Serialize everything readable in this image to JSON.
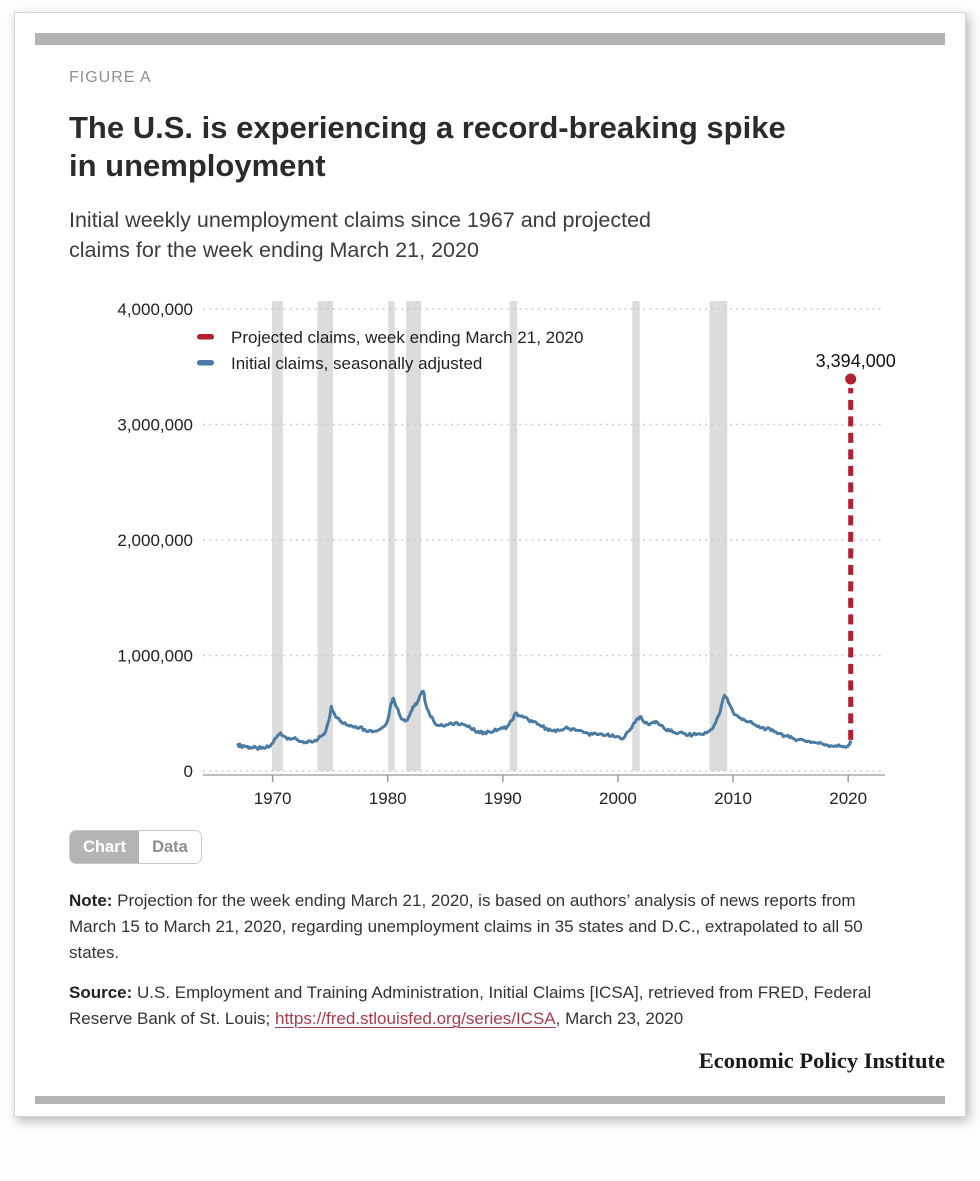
{
  "figure_label": "FIGURE A",
  "title_lines": [
    "The U.S. is experiencing a record-breaking spike",
    "in unemployment"
  ],
  "subtitle_lines": [
    "Initial weekly unemployment claims since 1967 and projected",
    "claims for the week ending March 21, 2020"
  ],
  "tabs": [
    {
      "label": "Chart",
      "active": true
    },
    {
      "label": "Data",
      "active": false
    }
  ],
  "note": {
    "label": "Note:",
    "text": " Projection for the week ending March 21, 2020, is based on authors’ analysis of news reports from March 15 to March 21, 2020, regarding unemployment claims in 35 states and D.C., extrapolated to all 50 states."
  },
  "source": {
    "label": "Source:",
    "text_before": " U.S. Employment and Training Administration, Initial Claims [ICSA], retrieved from FRED, Federal Reserve Bank of St. Louis; ",
    "link": "https://fred.stlouisfed.org/series/ICSA",
    "text_after": ", March 23, 2020"
  },
  "branding": "Economic Policy Institute",
  "chart_data": {
    "type": "line",
    "title": "The U.S. is experiencing a record-breaking spike in unemployment",
    "subtitle": "Initial weekly unemployment claims since 1967 and projected claims for the week ending March 21, 2020",
    "xlim": [
      1964.3,
      2023.2
    ],
    "ylim": [
      0,
      4000000
    ],
    "grid": "dotted-horizontal",
    "legend_position": "top-left-inside",
    "x_ticks": [
      "1970",
      "1980",
      "1990",
      "2000",
      "2010",
      "2020"
    ],
    "y_ticks": [
      {
        "value": 4000000,
        "label": "4,000,000"
      },
      {
        "value": 3000000,
        "label": "3,000,000"
      },
      {
        "value": 2000000,
        "label": "2,000,000"
      },
      {
        "value": 1000000,
        "label": "1,000,000"
      },
      {
        "value": 0,
        "label": "0"
      }
    ],
    "legend": [
      {
        "label": "Projected claims, week ending March 21, 2020",
        "color": "#b02030"
      },
      {
        "label": "Initial claims, seasonally adjusted",
        "color": "#4a7ba3"
      }
    ],
    "colors": {
      "recession_band": "#dcdcdc",
      "axis": "#a8a8a8",
      "gridline": "#c9c9c9"
    },
    "recessions": [
      [
        1969.95,
        1970.9
      ],
      [
        1973.9,
        1975.25
      ],
      [
        1980.05,
        1980.6
      ],
      [
        1981.6,
        1982.9
      ],
      [
        1990.6,
        1991.25
      ],
      [
        2001.25,
        2001.9
      ],
      [
        2007.95,
        2009.5
      ]
    ],
    "series": [
      {
        "name": "Initial claims, seasonally adjusted",
        "color": "#4a7ba3",
        "points": [
          [
            1967.0,
            230000
          ],
          [
            1967.25,
            215000
          ],
          [
            1967.5,
            220000
          ],
          [
            1967.75,
            210000
          ],
          [
            1968.0,
            205000
          ],
          [
            1968.3,
            200000
          ],
          [
            1968.6,
            198000
          ],
          [
            1969.0,
            195000
          ],
          [
            1969.4,
            200000
          ],
          [
            1969.8,
            215000
          ],
          [
            1970.1,
            260000
          ],
          [
            1970.4,
            300000
          ],
          [
            1970.7,
            330000
          ],
          [
            1971.0,
            300000
          ],
          [
            1971.4,
            285000
          ],
          [
            1971.8,
            280000
          ],
          [
            1972.2,
            265000
          ],
          [
            1972.6,
            255000
          ],
          [
            1973.0,
            245000
          ],
          [
            1973.4,
            250000
          ],
          [
            1973.8,
            260000
          ],
          [
            1974.2,
            300000
          ],
          [
            1974.6,
            340000
          ],
          [
            1974.9,
            440000
          ],
          [
            1975.1,
            560000
          ],
          [
            1975.3,
            510000
          ],
          [
            1975.6,
            460000
          ],
          [
            1976.0,
            420000
          ],
          [
            1976.4,
            400000
          ],
          [
            1976.8,
            395000
          ],
          [
            1977.2,
            385000
          ],
          [
            1977.6,
            380000
          ],
          [
            1978.0,
            360000
          ],
          [
            1978.4,
            350000
          ],
          [
            1978.8,
            345000
          ],
          [
            1979.2,
            355000
          ],
          [
            1979.6,
            380000
          ],
          [
            1980.0,
            440000
          ],
          [
            1980.3,
            590000
          ],
          [
            1980.5,
            630000
          ],
          [
            1980.8,
            550000
          ],
          [
            1981.1,
            470000
          ],
          [
            1981.4,
            445000
          ],
          [
            1981.7,
            440000
          ],
          [
            1982.0,
            510000
          ],
          [
            1982.3,
            560000
          ],
          [
            1982.6,
            600000
          ],
          [
            1982.9,
            670000
          ],
          [
            1983.1,
            690000
          ],
          [
            1983.3,
            580000
          ],
          [
            1983.6,
            500000
          ],
          [
            1984.0,
            430000
          ],
          [
            1984.4,
            395000
          ],
          [
            1984.8,
            390000
          ],
          [
            1985.2,
            400000
          ],
          [
            1985.6,
            405000
          ],
          [
            1986.0,
            420000
          ],
          [
            1986.4,
            410000
          ],
          [
            1986.8,
            395000
          ],
          [
            1987.2,
            370000
          ],
          [
            1987.6,
            345000
          ],
          [
            1988.0,
            330000
          ],
          [
            1988.4,
            335000
          ],
          [
            1988.8,
            340000
          ],
          [
            1989.2,
            345000
          ],
          [
            1989.6,
            360000
          ],
          [
            1990.0,
            370000
          ],
          [
            1990.4,
            385000
          ],
          [
            1990.8,
            440000
          ],
          [
            1991.1,
            500000
          ],
          [
            1991.4,
            480000
          ],
          [
            1991.8,
            465000
          ],
          [
            1992.2,
            445000
          ],
          [
            1992.6,
            425000
          ],
          [
            1993.0,
            405000
          ],
          [
            1993.4,
            385000
          ],
          [
            1993.8,
            370000
          ],
          [
            1994.2,
            350000
          ],
          [
            1994.6,
            340000
          ],
          [
            1995.0,
            355000
          ],
          [
            1995.4,
            370000
          ],
          [
            1995.8,
            365000
          ],
          [
            1996.2,
            365000
          ],
          [
            1996.6,
            350000
          ],
          [
            1997.0,
            335000
          ],
          [
            1997.4,
            325000
          ],
          [
            1997.8,
            318000
          ],
          [
            1998.2,
            315000
          ],
          [
            1998.6,
            320000
          ],
          [
            1999.0,
            310000
          ],
          [
            1999.4,
            302000
          ],
          [
            1999.8,
            295000
          ],
          [
            2000.2,
            285000
          ],
          [
            2000.6,
            300000
          ],
          [
            2001.0,
            350000
          ],
          [
            2001.3,
            400000
          ],
          [
            2001.6,
            445000
          ],
          [
            2001.9,
            470000
          ],
          [
            2002.2,
            430000
          ],
          [
            2002.6,
            405000
          ],
          [
            2003.0,
            420000
          ],
          [
            2003.3,
            430000
          ],
          [
            2003.7,
            395000
          ],
          [
            2004.1,
            360000
          ],
          [
            2004.5,
            345000
          ],
          [
            2004.9,
            335000
          ],
          [
            2005.3,
            330000
          ],
          [
            2005.7,
            325000
          ],
          [
            2006.1,
            310000
          ],
          [
            2006.5,
            315000
          ],
          [
            2006.9,
            320000
          ],
          [
            2007.3,
            318000
          ],
          [
            2007.7,
            330000
          ],
          [
            2008.1,
            360000
          ],
          [
            2008.5,
            420000
          ],
          [
            2008.9,
            520000
          ],
          [
            2009.1,
            610000
          ],
          [
            2009.25,
            655000
          ],
          [
            2009.5,
            625000
          ],
          [
            2009.8,
            555000
          ],
          [
            2010.1,
            490000
          ],
          [
            2010.5,
            465000
          ],
          [
            2010.9,
            450000
          ],
          [
            2011.3,
            425000
          ],
          [
            2011.7,
            410000
          ],
          [
            2012.1,
            385000
          ],
          [
            2012.5,
            375000
          ],
          [
            2012.9,
            365000
          ],
          [
            2013.3,
            350000
          ],
          [
            2013.7,
            340000
          ],
          [
            2014.1,
            325000
          ],
          [
            2014.5,
            305000
          ],
          [
            2014.9,
            290000
          ],
          [
            2015.3,
            280000
          ],
          [
            2015.7,
            272000
          ],
          [
            2016.1,
            268000
          ],
          [
            2016.5,
            258000
          ],
          [
            2016.9,
            250000
          ],
          [
            2017.3,
            243000
          ],
          [
            2017.7,
            237000
          ],
          [
            2018.1,
            228000
          ],
          [
            2018.5,
            220000
          ],
          [
            2018.9,
            218000
          ],
          [
            2019.3,
            215000
          ],
          [
            2019.7,
            212000
          ],
          [
            2020.0,
            216000
          ],
          [
            2020.15,
            235000
          ],
          [
            2020.21,
            252000
          ]
        ]
      }
    ],
    "projection": {
      "name": "Projected claims, week ending March 21, 2020",
      "x": 2020.22,
      "value": 3394000,
      "from_value": 252000,
      "label": "3,394,000",
      "color": "#b02030",
      "style": "dashed-vertical-with-dot"
    }
  }
}
